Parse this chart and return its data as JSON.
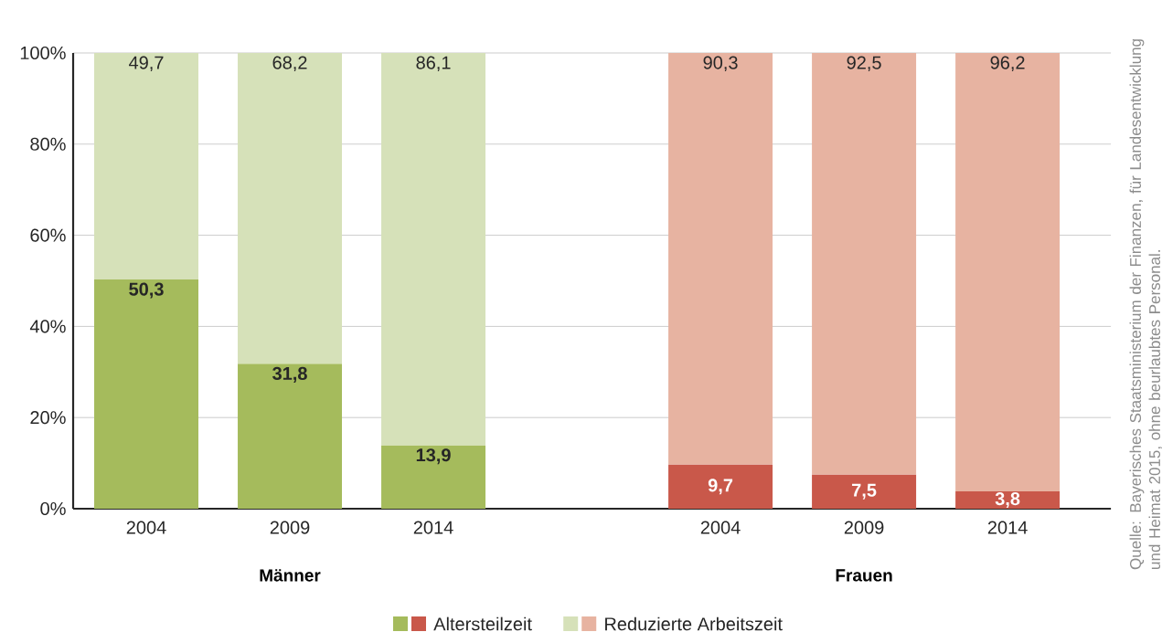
{
  "chart_data": {
    "type": "bar",
    "stacked": true,
    "categories": [
      "2004",
      "2009",
      "2014",
      null,
      "2004",
      "2009",
      "2014"
    ],
    "series": [
      {
        "name": "Altersteilzeit",
        "colors": [
          "#a5bb5c",
          "#a5bb5c",
          "#a5bb5c",
          null,
          "#c9584a",
          "#c9584a",
          "#c9584a"
        ],
        "values": [
          50.3,
          31.8,
          13.9,
          null,
          9.7,
          7.5,
          3.8
        ],
        "value_labels": [
          "50,3",
          "31,8",
          "13,9",
          null,
          "9,7",
          "7,5",
          "3,8"
        ]
      },
      {
        "name": "Reduzierte Arbeitszeit",
        "colors": [
          "#d6e1b9",
          "#d6e1b9",
          "#d6e1b9",
          null,
          "#e7b3a1",
          "#e7b3a1",
          "#e7b3a1"
        ],
        "values": [
          49.7,
          68.2,
          86.1,
          null,
          90.3,
          92.5,
          96.2
        ],
        "value_labels": [
          "49,7",
          "68,2",
          "86,1",
          null,
          "90,3",
          "92,5",
          "96,2"
        ]
      }
    ],
    "ylim": [
      0,
      100
    ],
    "yticks": [
      {
        "value": 0,
        "label": "0%"
      },
      {
        "value": 20,
        "label": "20%"
      },
      {
        "value": 40,
        "label": "40%"
      },
      {
        "value": 60,
        "label": "60%"
      },
      {
        "value": 80,
        "label": "80%"
      },
      {
        "value": 100,
        "label": "100%"
      }
    ],
    "grid": "y",
    "legend": "bottom",
    "annotations": [
      "Männer",
      "Frauen",
      "Quelle: Bayerisches Staatsministerium der Finanzen, für Landesentwicklung und Heimat 2015, ohne beurlaubtes Personal."
    ]
  }
}
